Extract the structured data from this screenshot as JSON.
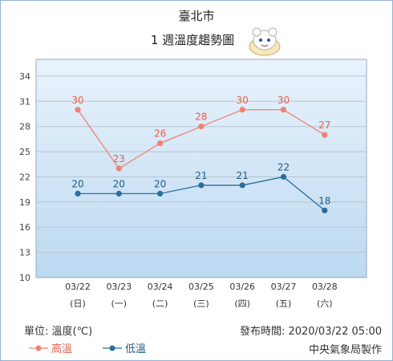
{
  "chart_data": {
    "type": "line",
    "title": "臺北市",
    "subtitle": "1 週溫度趨勢圖",
    "categories": [
      "03/22",
      "03/23",
      "03/24",
      "03/25",
      "03/26",
      "03/27",
      "03/28"
    ],
    "weekdays": [
      "(日)",
      "(一)",
      "(二)",
      "(三)",
      "(四)",
      "(五)",
      "(六)"
    ],
    "yticks": [
      10,
      13,
      16,
      19,
      22,
      25,
      28,
      31,
      34
    ],
    "ylim": [
      10,
      36
    ],
    "grid": true,
    "series": [
      {
        "name": "高溫",
        "values": [
          30,
          23,
          26,
          28,
          30,
          30,
          27
        ],
        "color": "#f08070",
        "label_color": "#e8604a"
      },
      {
        "name": "低溫",
        "values": [
          20,
          20,
          20,
          21,
          21,
          22,
          18
        ],
        "color": "#2a6e9c",
        "label_color": "#1f5a85"
      }
    ]
  },
  "footer": {
    "unit": "單位: 溫度(℃)",
    "published": "發布時間: 2020/03/22 05:00",
    "agency": "中央氣象局製作"
  },
  "mascot_icon": "weather-mascot-icon"
}
